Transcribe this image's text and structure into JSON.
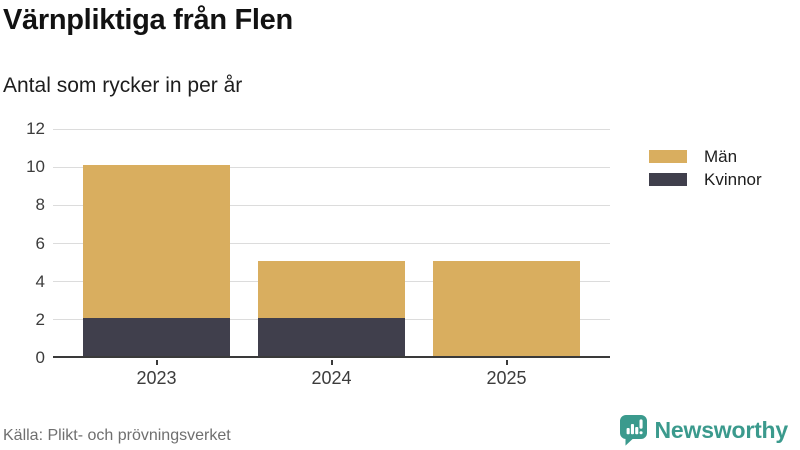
{
  "title": "Värnpliktiga från Flen",
  "subtitle": "Antal som rycker in per år",
  "source_note": "Källa: Plikt- och prövningsverket",
  "brand": {
    "name": "Newsworthy",
    "color": "#3b9a8d"
  },
  "legend": [
    {
      "label": "Män",
      "color": "#d9ae5f"
    },
    {
      "label": "Kvinnor",
      "color": "#403f4c"
    }
  ],
  "chart_data": {
    "type": "bar",
    "stacked": true,
    "title": "Värnpliktiga från Flen",
    "subtitle": "Antal som rycker in per år",
    "categories": [
      "2023",
      "2024",
      "2025"
    ],
    "series": [
      {
        "name": "Kvinnor",
        "color": "#403f4c",
        "values": [
          2,
          2,
          0
        ]
      },
      {
        "name": "Män",
        "color": "#d9ae5f",
        "values": [
          8,
          3,
          5
        ]
      }
    ],
    "totals": [
      10,
      5,
      5
    ],
    "xlabel": "",
    "ylabel": "",
    "ylim": [
      0,
      12
    ],
    "yticks": [
      0,
      2,
      4,
      6,
      8,
      10,
      12
    ],
    "grid": true,
    "legend_position": "right",
    "source": "Källa: Plikt- och prövningsverket"
  },
  "colors": {
    "background": "#ffffff",
    "grid": "#dcdcdc",
    "axis": "#3a3a3a",
    "tick_label": "#3c3c3c",
    "title": "#121212",
    "source": "#6f6f6f"
  }
}
